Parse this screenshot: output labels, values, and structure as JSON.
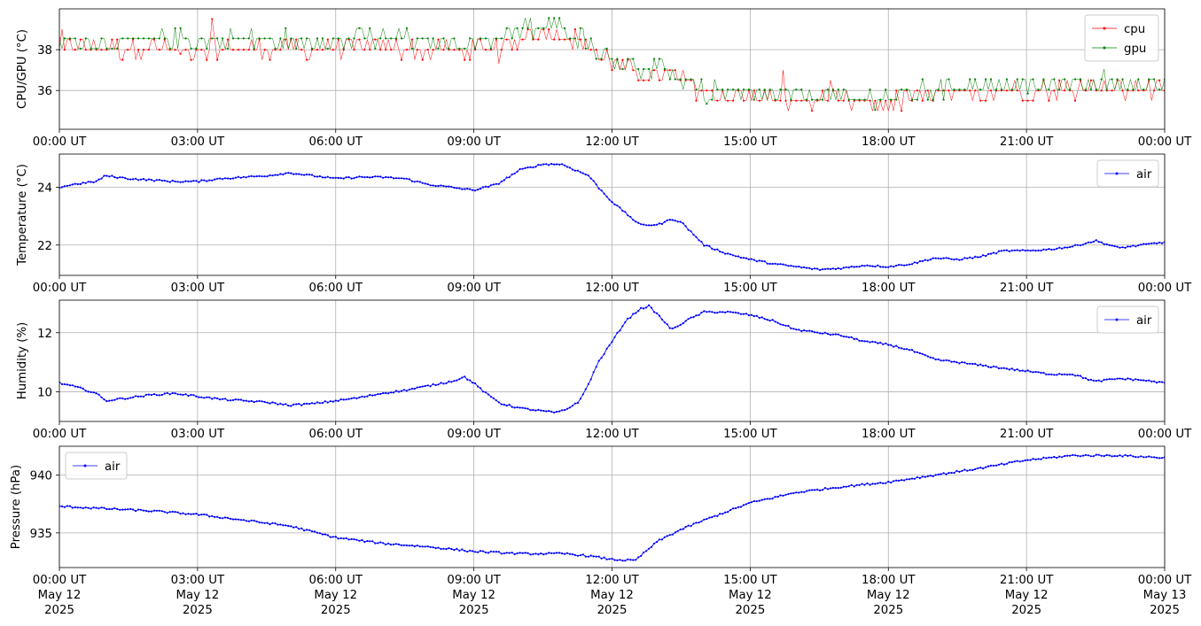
{
  "chart_data": [
    {
      "type": "line",
      "title": "",
      "xlabel": "",
      "ylabel": "CPU/GPU (°C)",
      "ylim": [
        34.1,
        40.0
      ],
      "yticks": [
        36,
        38
      ],
      "xticks": [
        "00:00 UT",
        "03:00 UT",
        "06:00 UT",
        "09:00 UT",
        "12:00 UT",
        "15:00 UT",
        "18:00 UT",
        "21:00 UT",
        "00:00 UT"
      ],
      "xrange_hours": [
        0,
        24
      ],
      "grid": true,
      "legend": "top-right",
      "series": [
        {
          "name": "cpu",
          "color": "#ff0000",
          "marker": "point",
          "noise": 0.5,
          "x": [
            0,
            1,
            2,
            3,
            4,
            5,
            6,
            7,
            8,
            9,
            9.8,
            10.2,
            10.8,
            11.4,
            11.7,
            12.0,
            12.5,
            13.0,
            13.5,
            14.0,
            15.0,
            16.0,
            17.0,
            17.5,
            18.0,
            18.5,
            19.0,
            20.0,
            21.0,
            22.0,
            22.5,
            23.0,
            24.0
          ],
          "values": [
            38.1,
            38.0,
            38.1,
            38.0,
            38.1,
            38.0,
            38.1,
            38.1,
            38.0,
            38.0,
            38.3,
            38.8,
            38.9,
            38.3,
            37.7,
            37.5,
            36.8,
            36.8,
            36.5,
            35.9,
            35.6,
            35.5,
            35.4,
            35.3,
            35.4,
            35.6,
            35.8,
            35.9,
            36.0,
            36.1,
            36.3,
            36.0,
            36.0
          ]
        },
        {
          "name": "gpu",
          "color": "#008000",
          "marker": "point",
          "noise": 0.5,
          "x": [
            0,
            1,
            2,
            3,
            4,
            5,
            6,
            7,
            8,
            9,
            9.8,
            10.2,
            10.8,
            11.4,
            11.7,
            12.0,
            12.5,
            13.0,
            13.5,
            14.0,
            15.0,
            16.0,
            17.0,
            17.5,
            18.0,
            18.5,
            19.0,
            20.0,
            21.0,
            22.0,
            22.5,
            23.0,
            24.0
          ],
          "values": [
            38.4,
            38.3,
            38.4,
            38.4,
            38.5,
            38.4,
            38.4,
            38.5,
            38.3,
            38.3,
            38.7,
            39.0,
            39.0,
            38.5,
            37.9,
            37.6,
            37.0,
            36.9,
            36.6,
            36.0,
            35.7,
            35.7,
            35.6,
            35.5,
            35.6,
            35.8,
            36.0,
            36.1,
            36.2,
            36.3,
            36.5,
            36.2,
            36.2
          ]
        }
      ]
    },
    {
      "type": "line",
      "title": "",
      "xlabel": "",
      "ylabel": "Temperature (°C)",
      "ylim": [
        20.95,
        25.15
      ],
      "yticks": [
        22,
        24
      ],
      "xticks": [
        "00:00 UT",
        "03:00 UT",
        "06:00 UT",
        "09:00 UT",
        "12:00 UT",
        "15:00 UT",
        "18:00 UT",
        "21:00 UT",
        "00:00 UT"
      ],
      "xrange_hours": [
        0,
        24
      ],
      "grid": true,
      "legend": "top-right",
      "series": [
        {
          "name": "air",
          "color": "#0000ff",
          "marker": "point",
          "noise": 0.03,
          "x": [
            0,
            0.3,
            0.8,
            1.0,
            1.5,
            2.0,
            2.5,
            3.0,
            3.5,
            4.0,
            4.5,
            5.0,
            5.5,
            6.0,
            6.5,
            7.0,
            7.5,
            8.0,
            8.5,
            9.0,
            9.5,
            10.0,
            10.5,
            10.9,
            11.2,
            11.5,
            11.7,
            12.0,
            12.3,
            12.6,
            13.0,
            13.3,
            13.5,
            14.0,
            14.5,
            15.0,
            15.5,
            16.0,
            16.5,
            17.0,
            17.5,
            18.0,
            18.5,
            19.0,
            19.5,
            20.0,
            20.5,
            21.0,
            21.5,
            22.0,
            22.5,
            22.8,
            23.0,
            23.5,
            24.0
          ],
          "values": [
            24.0,
            24.1,
            24.2,
            24.4,
            24.3,
            24.25,
            24.2,
            24.2,
            24.3,
            24.35,
            24.4,
            24.5,
            24.4,
            24.3,
            24.35,
            24.35,
            24.3,
            24.1,
            24.0,
            23.9,
            24.1,
            24.6,
            24.8,
            24.8,
            24.6,
            24.4,
            24.0,
            23.5,
            23.1,
            22.7,
            22.7,
            22.9,
            22.8,
            22.0,
            21.7,
            21.5,
            21.35,
            21.25,
            21.15,
            21.2,
            21.3,
            21.25,
            21.35,
            21.55,
            21.5,
            21.6,
            21.8,
            21.8,
            21.85,
            21.95,
            22.15,
            22.0,
            21.9,
            22.0,
            22.1
          ]
        }
      ]
    },
    {
      "type": "line",
      "title": "",
      "xlabel": "",
      "ylabel": "Humidity (%)",
      "ylim": [
        9.0,
        13.1
      ],
      "yticks": [
        10,
        12
      ],
      "xticks": [
        "00:00 UT",
        "03:00 UT",
        "06:00 UT",
        "09:00 UT",
        "12:00 UT",
        "15:00 UT",
        "18:00 UT",
        "21:00 UT",
        "00:00 UT"
      ],
      "xrange_hours": [
        0,
        24
      ],
      "grid": true,
      "legend": "top-right",
      "series": [
        {
          "name": "air",
          "color": "#0000ff",
          "marker": "point",
          "noise": 0.03,
          "x": [
            0,
            0.4,
            0.8,
            1.0,
            1.5,
            2.0,
            2.5,
            3.0,
            3.5,
            4.0,
            4.5,
            5.0,
            5.5,
            6.0,
            6.5,
            7.0,
            7.5,
            8.0,
            8.5,
            8.8,
            9.0,
            9.3,
            9.6,
            10.0,
            10.5,
            10.8,
            11.0,
            11.3,
            11.5,
            11.7,
            12.0,
            12.3,
            12.6,
            12.8,
            13.0,
            13.3,
            13.6,
            14.0,
            14.5,
            15.0,
            15.5,
            16.0,
            16.5,
            17.0,
            17.5,
            18.0,
            18.5,
            19.0,
            19.5,
            20.0,
            20.5,
            21.0,
            21.5,
            22.0,
            22.5,
            23.0,
            23.5,
            24.0
          ],
          "values": [
            10.3,
            10.15,
            9.95,
            9.7,
            9.8,
            9.9,
            9.95,
            9.85,
            9.75,
            9.7,
            9.65,
            9.55,
            9.6,
            9.7,
            9.8,
            9.95,
            10.05,
            10.2,
            10.35,
            10.5,
            10.3,
            9.9,
            9.6,
            9.45,
            9.35,
            9.3,
            9.4,
            9.7,
            10.3,
            11.0,
            11.7,
            12.4,
            12.8,
            12.9,
            12.6,
            12.1,
            12.4,
            12.7,
            12.7,
            12.6,
            12.4,
            12.1,
            12.0,
            11.9,
            11.7,
            11.6,
            11.4,
            11.1,
            11.0,
            10.9,
            10.8,
            10.7,
            10.6,
            10.6,
            10.35,
            10.45,
            10.4,
            10.3
          ]
        }
      ]
    },
    {
      "type": "line",
      "title": "",
      "xlabel": "",
      "ylabel": "Pressure (hPa)",
      "ylim": [
        932.0,
        942.5
      ],
      "yticks": [
        935,
        940
      ],
      "xticks": [
        "00:00 UT",
        "03:00 UT",
        "06:00 UT",
        "09:00 UT",
        "12:00 UT",
        "15:00 UT",
        "18:00 UT",
        "21:00 UT",
        "00:00 UT"
      ],
      "xtick_dates": [
        "May 12",
        "May 12",
        "May 12",
        "May 12",
        "May 12",
        "May 12",
        "May 12",
        "May 12",
        "May 13"
      ],
      "xtick_year": "2025",
      "xrange_hours": [
        0,
        24
      ],
      "grid": true,
      "legend": "top-left",
      "series": [
        {
          "name": "air",
          "color": "#0000ff",
          "marker": "point",
          "noise": 0.08,
          "x": [
            0,
            1,
            2,
            3,
            4,
            5,
            6,
            7,
            8,
            9,
            10,
            11,
            11.5,
            12.0,
            12.5,
            13.0,
            13.5,
            14.0,
            15.0,
            16.0,
            17.0,
            18.0,
            19.0,
            20.0,
            21.0,
            22.0,
            23.0,
            24.0
          ],
          "values": [
            937.3,
            937.1,
            936.9,
            936.6,
            936.1,
            935.6,
            934.6,
            934.1,
            933.8,
            933.4,
            933.2,
            933.2,
            933.0,
            932.7,
            932.6,
            934.3,
            935.3,
            936.1,
            937.6,
            938.5,
            939.0,
            939.4,
            940.0,
            940.6,
            941.3,
            941.7,
            941.7,
            941.5
          ]
        }
      ]
    }
  ]
}
